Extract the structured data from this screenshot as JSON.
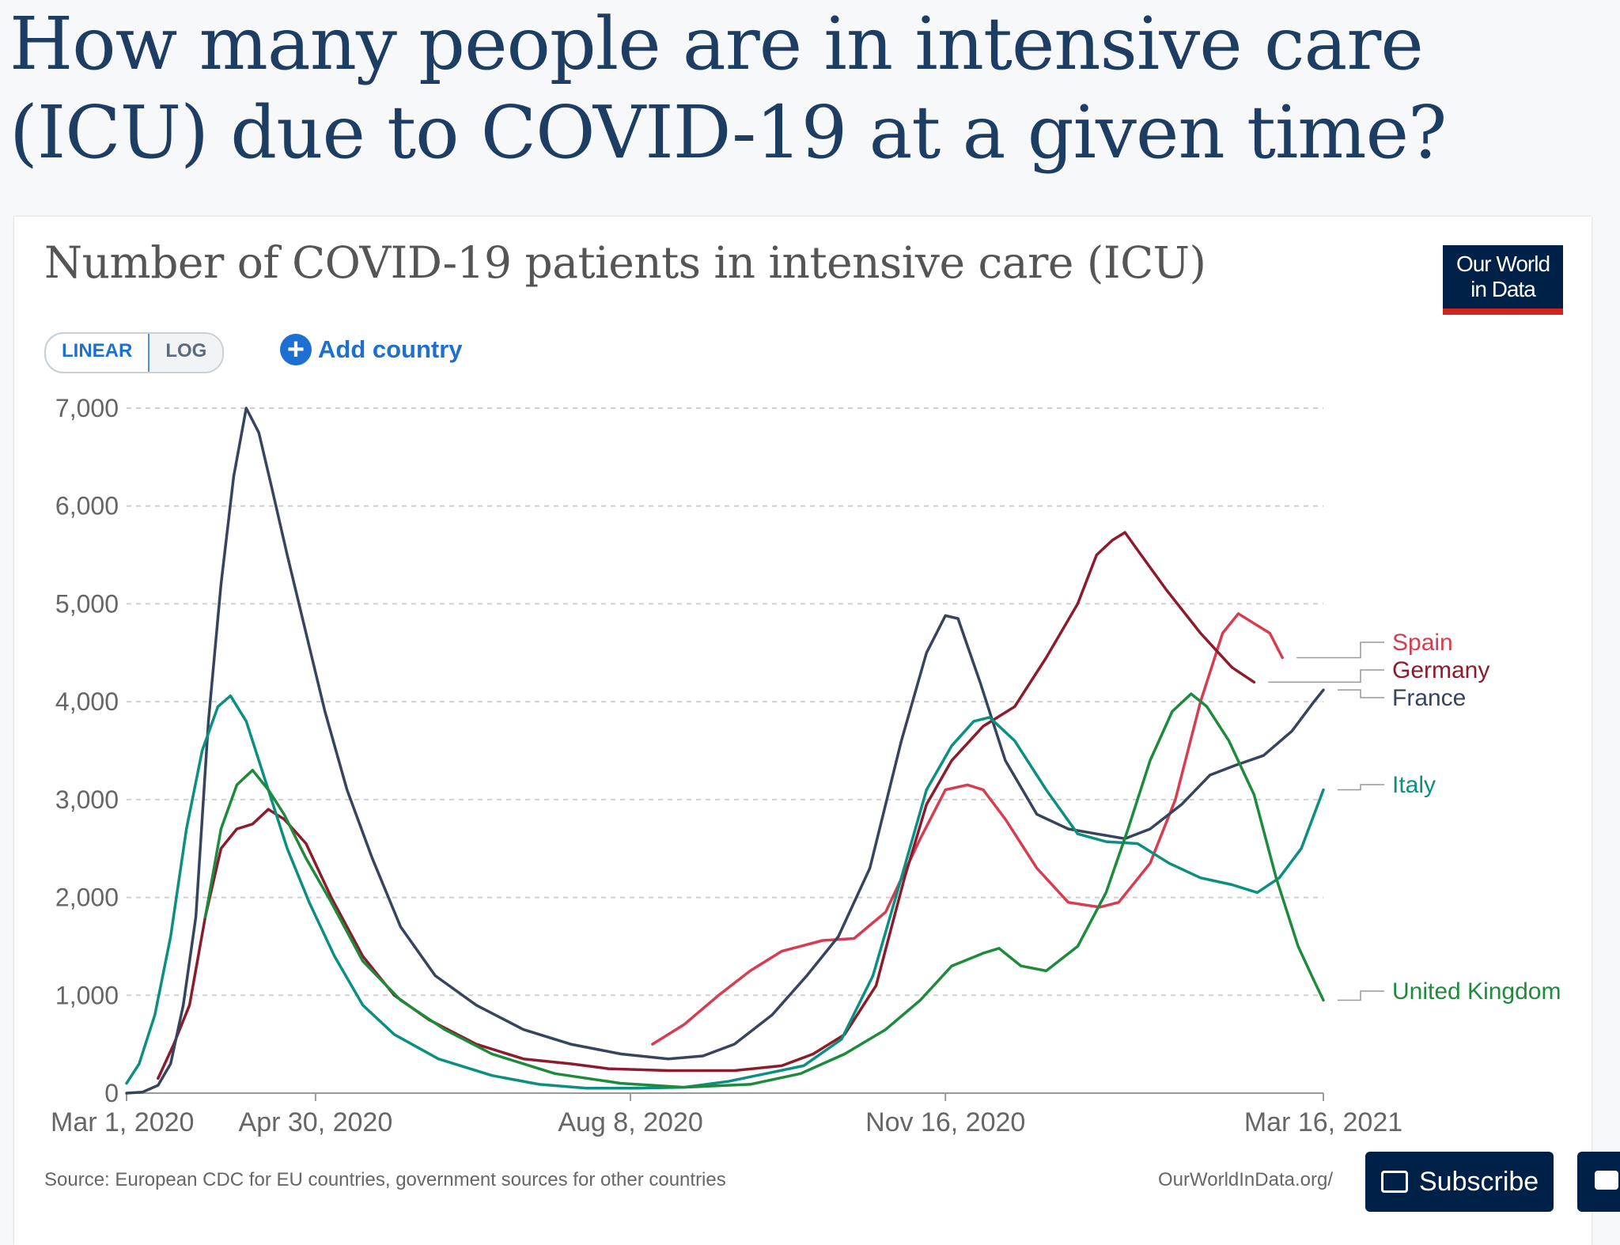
{
  "page": {
    "headline": "How many people are in intensive care (ICU) due to COVID-19 at a given time?"
  },
  "chart_header": {
    "title": "Number of COVID-19 patients in intensive care (ICU)",
    "logo_line1": "Our World",
    "logo_line2": "in Data"
  },
  "controls": {
    "linear_label": "LINEAR",
    "log_label": "LOG",
    "add_country_label": "Add country"
  },
  "footer": {
    "source": "Source: European CDC for EU countries, government sources for other countries",
    "url": "OurWorldInData.org/",
    "subscribe_label": "Subscribe"
  },
  "chart_data": {
    "type": "line",
    "title": "Number of COVID-19 patients in intensive care (ICU)",
    "xlabel": "",
    "ylabel": "",
    "x_range": [
      "2020-03-01",
      "2021-03-16"
    ],
    "ylim": [
      0,
      7000
    ],
    "y_ticks": [
      0,
      1000,
      2000,
      3000,
      4000,
      5000,
      6000,
      7000
    ],
    "y_tick_labels": [
      "0",
      "1,000",
      "2,000",
      "3,000",
      "4,000",
      "5,000",
      "6,000",
      "7,000"
    ],
    "x_tick_labels": [
      "Mar 1, 2020",
      "Apr 30, 2020",
      "Aug 8, 2020",
      "Nov 16, 2020",
      "Mar 16, 2021"
    ],
    "x_ticks": [
      "2020-03-01",
      "2020-04-30",
      "2020-08-08",
      "2020-11-16",
      "2021-03-16"
    ],
    "grid": "horizontal-dashed",
    "legend": "right-end-labels",
    "series": [
      {
        "name": "Spain",
        "color": "#d73c50",
        "points": [
          [
            "2020-08-15",
            500
          ],
          [
            "2020-08-25",
            700
          ],
          [
            "2020-09-05",
            1000
          ],
          [
            "2020-09-15",
            1250
          ],
          [
            "2020-09-25",
            1450
          ],
          [
            "2020-10-08",
            1560
          ],
          [
            "2020-10-18",
            1580
          ],
          [
            "2020-10-28",
            1850
          ],
          [
            "2020-11-08",
            2600
          ],
          [
            "2020-11-16",
            3100
          ],
          [
            "2020-11-23",
            3150
          ],
          [
            "2020-11-28",
            3100
          ],
          [
            "2020-12-05",
            2800
          ],
          [
            "2020-12-15",
            2300
          ],
          [
            "2020-12-25",
            1950
          ],
          [
            "2021-01-04",
            1900
          ],
          [
            "2021-01-10",
            1950
          ],
          [
            "2021-01-20",
            2350
          ],
          [
            "2021-01-28",
            3000
          ],
          [
            "2021-02-05",
            4000
          ],
          [
            "2021-02-12",
            4700
          ],
          [
            "2021-02-17",
            4900
          ],
          [
            "2021-02-22",
            4800
          ],
          [
            "2021-02-27",
            4700
          ],
          [
            "2021-03-03",
            4450
          ]
        ]
      },
      {
        "name": "Germany",
        "color": "#8c1c2c",
        "points": [
          [
            "2020-03-11",
            150
          ],
          [
            "2020-03-16",
            500
          ],
          [
            "2020-03-21",
            900
          ],
          [
            "2020-03-26",
            1800
          ],
          [
            "2020-03-31",
            2500
          ],
          [
            "2020-04-05",
            2700
          ],
          [
            "2020-04-10",
            2750
          ],
          [
            "2020-04-15",
            2900
          ],
          [
            "2020-04-20",
            2800
          ],
          [
            "2020-04-27",
            2550
          ],
          [
            "2020-05-05",
            2000
          ],
          [
            "2020-05-15",
            1400
          ],
          [
            "2020-05-25",
            1000
          ],
          [
            "2020-06-05",
            750
          ],
          [
            "2020-06-20",
            500
          ],
          [
            "2020-07-05",
            350
          ],
          [
            "2020-07-20",
            300
          ],
          [
            "2020-08-01",
            250
          ],
          [
            "2020-08-20",
            230
          ],
          [
            "2020-09-10",
            230
          ],
          [
            "2020-09-25",
            280
          ],
          [
            "2020-10-05",
            400
          ],
          [
            "2020-10-15",
            600
          ],
          [
            "2020-10-25",
            1100
          ],
          [
            "2020-11-03",
            2200
          ],
          [
            "2020-11-10",
            2950
          ],
          [
            "2020-11-18",
            3400
          ],
          [
            "2020-11-28",
            3750
          ],
          [
            "2020-12-08",
            3950
          ],
          [
            "2020-12-18",
            4450
          ],
          [
            "2020-12-28",
            5000
          ],
          [
            "2021-01-03",
            5500
          ],
          [
            "2021-01-08",
            5650
          ],
          [
            "2021-01-12",
            5730
          ],
          [
            "2021-01-16",
            5550
          ],
          [
            "2021-01-25",
            5150
          ],
          [
            "2021-02-05",
            4700
          ],
          [
            "2021-02-15",
            4350
          ],
          [
            "2021-02-22",
            4200
          ]
        ]
      },
      {
        "name": "France",
        "color": "#37445d",
        "points": [
          [
            "2020-03-01",
            0
          ],
          [
            "2020-03-06",
            10
          ],
          [
            "2020-03-11",
            80
          ],
          [
            "2020-03-15",
            300
          ],
          [
            "2020-03-19",
            900
          ],
          [
            "2020-03-23",
            1800
          ],
          [
            "2020-03-27",
            3800
          ],
          [
            "2020-03-31",
            5200
          ],
          [
            "2020-04-04",
            6300
          ],
          [
            "2020-04-08",
            7000
          ],
          [
            "2020-04-12",
            6750
          ],
          [
            "2020-04-16",
            6200
          ],
          [
            "2020-04-21",
            5500
          ],
          [
            "2020-04-27",
            4700
          ],
          [
            "2020-05-03",
            3900
          ],
          [
            "2020-05-10",
            3100
          ],
          [
            "2020-05-18",
            2400
          ],
          [
            "2020-05-27",
            1700
          ],
          [
            "2020-06-07",
            1200
          ],
          [
            "2020-06-20",
            900
          ],
          [
            "2020-07-05",
            650
          ],
          [
            "2020-07-20",
            500
          ],
          [
            "2020-08-05",
            400
          ],
          [
            "2020-08-20",
            350
          ],
          [
            "2020-08-31",
            380
          ],
          [
            "2020-09-10",
            500
          ],
          [
            "2020-09-22",
            800
          ],
          [
            "2020-10-03",
            1200
          ],
          [
            "2020-10-13",
            1600
          ],
          [
            "2020-10-23",
            2300
          ],
          [
            "2020-11-02",
            3600
          ],
          [
            "2020-11-10",
            4500
          ],
          [
            "2020-11-16",
            4880
          ],
          [
            "2020-11-20",
            4850
          ],
          [
            "2020-11-27",
            4200
          ],
          [
            "2020-12-05",
            3400
          ],
          [
            "2020-12-15",
            2850
          ],
          [
            "2020-12-25",
            2700
          ],
          [
            "2021-01-03",
            2650
          ],
          [
            "2021-01-12",
            2600
          ],
          [
            "2021-01-20",
            2700
          ],
          [
            "2021-01-30",
            2950
          ],
          [
            "2021-02-08",
            3250
          ],
          [
            "2021-02-16",
            3350
          ],
          [
            "2021-02-25",
            3450
          ],
          [
            "2021-03-06",
            3700
          ],
          [
            "2021-03-13",
            4000
          ],
          [
            "2021-03-16",
            4120
          ]
        ]
      },
      {
        "name": "Italy",
        "color": "#0a8f80",
        "points": [
          [
            "2020-03-01",
            100
          ],
          [
            "2020-03-05",
            300
          ],
          [
            "2020-03-10",
            800
          ],
          [
            "2020-03-15",
            1600
          ],
          [
            "2020-03-20",
            2700
          ],
          [
            "2020-03-25",
            3500
          ],
          [
            "2020-03-30",
            3950
          ],
          [
            "2020-04-03",
            4060
          ],
          [
            "2020-04-08",
            3800
          ],
          [
            "2020-04-14",
            3200
          ],
          [
            "2020-04-21",
            2500
          ],
          [
            "2020-04-28",
            1950
          ],
          [
            "2020-05-06",
            1400
          ],
          [
            "2020-05-15",
            900
          ],
          [
            "2020-05-25",
            600
          ],
          [
            "2020-06-08",
            350
          ],
          [
            "2020-06-25",
            180
          ],
          [
            "2020-07-10",
            90
          ],
          [
            "2020-07-25",
            50
          ],
          [
            "2020-08-10",
            50
          ],
          [
            "2020-08-25",
            60
          ],
          [
            "2020-09-08",
            120
          ],
          [
            "2020-09-20",
            200
          ],
          [
            "2020-10-02",
            280
          ],
          [
            "2020-10-14",
            550
          ],
          [
            "2020-10-24",
            1200
          ],
          [
            "2020-11-02",
            2200
          ],
          [
            "2020-11-10",
            3100
          ],
          [
            "2020-11-18",
            3550
          ],
          [
            "2020-11-25",
            3800
          ],
          [
            "2020-11-30",
            3840
          ],
          [
            "2020-12-08",
            3600
          ],
          [
            "2020-12-18",
            3100
          ],
          [
            "2020-12-28",
            2650
          ],
          [
            "2021-01-06",
            2570
          ],
          [
            "2021-01-16",
            2550
          ],
          [
            "2021-01-26",
            2350
          ],
          [
            "2021-02-05",
            2200
          ],
          [
            "2021-02-15",
            2130
          ],
          [
            "2021-02-23",
            2050
          ],
          [
            "2021-03-02",
            2200
          ],
          [
            "2021-03-09",
            2500
          ],
          [
            "2021-03-16",
            3100
          ]
        ]
      },
      {
        "name": "United Kingdom",
        "color": "#1e8a3c",
        "points": [
          [
            "2020-03-26",
            1800
          ],
          [
            "2020-03-31",
            2700
          ],
          [
            "2020-04-05",
            3150
          ],
          [
            "2020-04-10",
            3300
          ],
          [
            "2020-04-15",
            3100
          ],
          [
            "2020-04-20",
            2850
          ],
          [
            "2020-04-27",
            2400
          ],
          [
            "2020-05-05",
            1950
          ],
          [
            "2020-05-15",
            1350
          ],
          [
            "2020-05-27",
            950
          ],
          [
            "2020-06-10",
            650
          ],
          [
            "2020-06-25",
            400
          ],
          [
            "2020-07-15",
            200
          ],
          [
            "2020-08-05",
            100
          ],
          [
            "2020-08-25",
            60
          ],
          [
            "2020-09-15",
            90
          ],
          [
            "2020-10-01",
            200
          ],
          [
            "2020-10-15",
            400
          ],
          [
            "2020-10-28",
            650
          ],
          [
            "2020-11-08",
            950
          ],
          [
            "2020-11-18",
            1300
          ],
          [
            "2020-11-28",
            1430
          ],
          [
            "2020-12-03",
            1480
          ],
          [
            "2020-12-10",
            1300
          ],
          [
            "2020-12-18",
            1250
          ],
          [
            "2020-12-28",
            1500
          ],
          [
            "2021-01-06",
            2050
          ],
          [
            "2021-01-13",
            2700
          ],
          [
            "2021-01-20",
            3400
          ],
          [
            "2021-01-27",
            3900
          ],
          [
            "2021-02-02",
            4080
          ],
          [
            "2021-02-07",
            3950
          ],
          [
            "2021-02-14",
            3600
          ],
          [
            "2021-02-22",
            3050
          ],
          [
            "2021-03-01",
            2200
          ],
          [
            "2021-03-08",
            1500
          ],
          [
            "2021-03-13",
            1150
          ],
          [
            "2021-03-16",
            950
          ]
        ]
      }
    ]
  }
}
